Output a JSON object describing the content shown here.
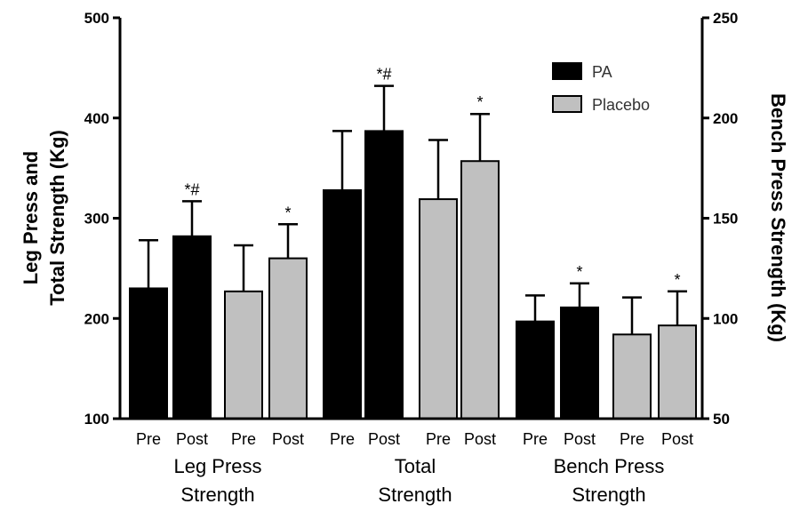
{
  "chart_data": {
    "type": "bar",
    "left_axis": {
      "label_lines": [
        "Leg Press and",
        "Total Strength (Kg)"
      ],
      "range": [
        100,
        500
      ],
      "ticks": [
        100,
        200,
        300,
        400,
        500
      ]
    },
    "right_axis": {
      "label": "Bench Press Strength (Kg)",
      "range": [
        50,
        250
      ],
      "ticks": [
        50,
        100,
        150,
        200,
        250
      ]
    },
    "legend": {
      "placement": "top-right",
      "items": [
        {
          "name": "PA",
          "color": "#000000"
        },
        {
          "name": "Placebo",
          "color": "#c0c0c0"
        }
      ]
    },
    "groups": [
      {
        "label_lines": [
          "Leg Press",
          "Strength"
        ],
        "axis": "left",
        "bars": [
          {
            "series": "PA",
            "label": "Pre",
            "value": 230,
            "error": 48,
            "annotation": ""
          },
          {
            "series": "PA",
            "label": "Post",
            "value": 282,
            "error": 35,
            "annotation": "*#"
          },
          {
            "series": "Placebo",
            "label": "Pre",
            "value": 227,
            "error": 46,
            "annotation": ""
          },
          {
            "series": "Placebo",
            "label": "Post",
            "value": 260,
            "error": 34,
            "annotation": "*"
          }
        ]
      },
      {
        "label_lines": [
          "Total",
          "Strength"
        ],
        "axis": "left",
        "bars": [
          {
            "series": "PA",
            "label": "Pre",
            "value": 328,
            "error": 59,
            "annotation": ""
          },
          {
            "series": "PA",
            "label": "Post",
            "value": 387,
            "error": 45,
            "annotation": "*#"
          },
          {
            "series": "Placebo",
            "label": "Pre",
            "value": 319,
            "error": 59,
            "annotation": ""
          },
          {
            "series": "Placebo",
            "label": "Post",
            "value": 357,
            "error": 47,
            "annotation": "*"
          }
        ]
      },
      {
        "label_lines": [
          "Bench Press",
          "Strength"
        ],
        "axis": "right",
        "bars": [
          {
            "series": "PA",
            "label": "Pre",
            "value": 98.5,
            "error": 13,
            "annotation": ""
          },
          {
            "series": "PA",
            "label": "Post",
            "value": 105.5,
            "error": 12,
            "annotation": "*"
          },
          {
            "series": "Placebo",
            "label": "Pre",
            "value": 92,
            "error": 18.5,
            "annotation": ""
          },
          {
            "series": "Placebo",
            "label": "Post",
            "value": 96.5,
            "error": 17,
            "annotation": "*"
          }
        ]
      }
    ]
  }
}
